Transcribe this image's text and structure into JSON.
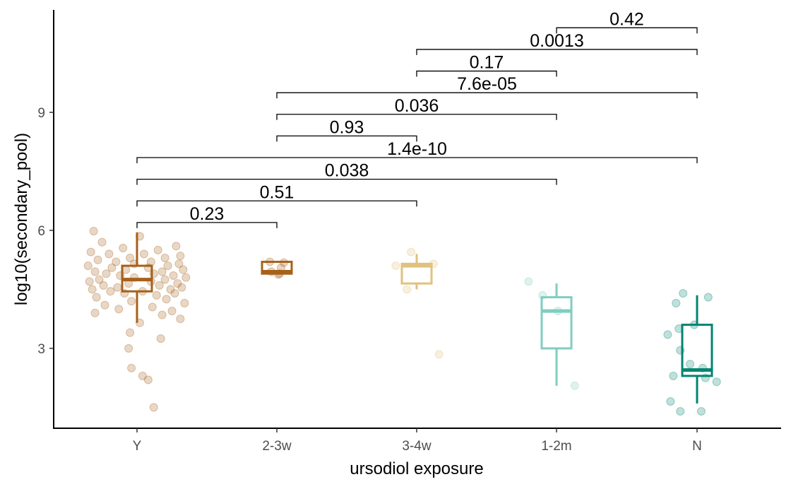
{
  "chart_data": {
    "type": "box",
    "xlabel": "ursodiol exposure",
    "ylabel": "log10(secondary_pool)",
    "ylim": [
      0.7,
      11.6
    ],
    "y_ticks": [
      3,
      6,
      9
    ],
    "grid": false,
    "legend": "none",
    "categories": [
      "Y",
      "2-3w",
      "3-4w",
      "1-2m",
      "N"
    ],
    "colors": [
      "#a6611a",
      "#a6611a",
      "#dfc27d",
      "#80cdc1",
      "#018571"
    ],
    "boxes": [
      {
        "category": "Y",
        "whisker_low": 3.65,
        "q1": 4.45,
        "median": 4.75,
        "q3": 5.1,
        "whisker_high": 5.95
      },
      {
        "category": "2-3w",
        "whisker_low": 4.9,
        "q1": 4.9,
        "median": 4.95,
        "q3": 5.2,
        "whisker_high": 5.2
      },
      {
        "category": "3-4w",
        "whisker_low": 4.5,
        "q1": 4.65,
        "median": 5.1,
        "q3": 5.15,
        "whisker_high": 5.4
      },
      {
        "category": "1-2m",
        "whisker_low": 2.05,
        "q1": 3.0,
        "median": 3.95,
        "q3": 4.3,
        "whisker_high": 4.65
      },
      {
        "category": "N",
        "whisker_low": 1.6,
        "q1": 2.3,
        "median": 2.45,
        "q3": 3.6,
        "whisker_high": 4.35
      }
    ],
    "points": [
      {
        "category": "Y",
        "y": [
          5.98,
          5.85,
          5.7,
          5.6,
          5.55,
          5.5,
          5.45,
          5.4,
          5.4,
          5.35,
          5.3,
          5.3,
          5.25,
          5.2,
          5.2,
          5.15,
          5.15,
          5.1,
          5.1,
          5.05,
          5.05,
          5.0,
          5.0,
          4.95,
          4.95,
          4.9,
          4.9,
          4.85,
          4.85,
          4.8,
          4.8,
          4.75,
          4.75,
          4.7,
          4.7,
          4.65,
          4.65,
          4.6,
          4.6,
          4.55,
          4.55,
          4.5,
          4.5,
          4.45,
          4.45,
          4.4,
          4.4,
          4.35,
          4.3,
          4.25,
          4.2,
          4.15,
          4.1,
          4.05,
          4.0,
          3.95,
          3.9,
          3.85,
          3.75,
          3.65,
          3.4,
          3.25,
          3.0,
          2.5,
          2.3,
          2.2,
          1.5
        ],
        "x_offset": [
          -0.31,
          0.02,
          -0.25,
          0.28,
          -0.1,
          0.15,
          -0.33,
          0.05,
          -0.2,
          0.31,
          -0.05,
          0.2,
          -0.28,
          0.1,
          -0.15,
          0.3,
          -0.02,
          0.22,
          -0.35,
          0.08,
          -0.18,
          0.33,
          -0.08,
          0.18,
          -0.3,
          0.12,
          -0.22,
          0.26,
          -0.12,
          0.35,
          -0.02,
          0.2,
          -0.27,
          0.1,
          -0.34,
          0.29,
          -0.06,
          0.16,
          -0.24,
          0.32,
          -0.14,
          0.24,
          -0.32,
          0.04,
          -0.19,
          0.27,
          -0.09,
          0.14,
          -0.29,
          0.21,
          -0.04,
          0.34,
          -0.23,
          0.11,
          -0.13,
          0.25,
          -0.3,
          0.18,
          0.31,
          0.02,
          -0.05,
          0.17,
          -0.06,
          -0.04,
          0.04,
          0.08,
          0.12
        ]
      },
      {
        "category": "2-3w",
        "y": [
          5.2,
          5.18,
          5.05,
          4.95,
          4.9,
          4.88
        ],
        "x_offset": [
          -0.05,
          0.05,
          0.03,
          -0.04,
          0.02,
          0.01
        ]
      },
      {
        "category": "3-4w",
        "y": [
          5.45,
          5.15,
          5.1,
          4.5,
          2.85
        ],
        "x_offset": [
          -0.04,
          0.12,
          -0.15,
          -0.07,
          0.16
        ]
      },
      {
        "category": "1-2m",
        "y": [
          4.7,
          4.35,
          3.95,
          2.05
        ],
        "x_offset": [
          -0.2,
          -0.1,
          0.01,
          0.13
        ]
      },
      {
        "category": "N",
        "y": [
          4.4,
          4.3,
          4.15,
          3.6,
          3.5,
          3.35,
          2.95,
          2.6,
          2.5,
          2.3,
          2.25,
          2.15,
          1.65,
          1.4,
          1.4
        ],
        "x_offset": [
          -0.1,
          0.08,
          -0.15,
          -0.02,
          -0.13,
          -0.21,
          -0.12,
          -0.05,
          0.04,
          -0.17,
          0.06,
          0.14,
          -0.19,
          -0.12,
          0.03
        ]
      }
    ],
    "comparisons": [
      {
        "from": "Y",
        "to": "2-3w",
        "y": 6.2,
        "label": "0.23"
      },
      {
        "from": "Y",
        "to": "3-4w",
        "y": 6.75,
        "label": "0.51"
      },
      {
        "from": "Y",
        "to": "1-2m",
        "y": 7.3,
        "label": "0.038"
      },
      {
        "from": "Y",
        "to": "N",
        "y": 7.85,
        "label": "1.4e-10"
      },
      {
        "from": "2-3w",
        "to": "3-4w",
        "y": 8.4,
        "label": "0.93"
      },
      {
        "from": "2-3w",
        "to": "1-2m",
        "y": 8.95,
        "label": "0.036"
      },
      {
        "from": "2-3w",
        "to": "N",
        "y": 9.5,
        "label": "7.6e-05"
      },
      {
        "from": "3-4w",
        "to": "1-2m",
        "y": 10.05,
        "label": "0.17"
      },
      {
        "from": "3-4w",
        "to": "N",
        "y": 10.6,
        "label": "0.0013"
      },
      {
        "from": "1-2m",
        "to": "N",
        "y": 11.15,
        "label": "0.42"
      }
    ]
  }
}
